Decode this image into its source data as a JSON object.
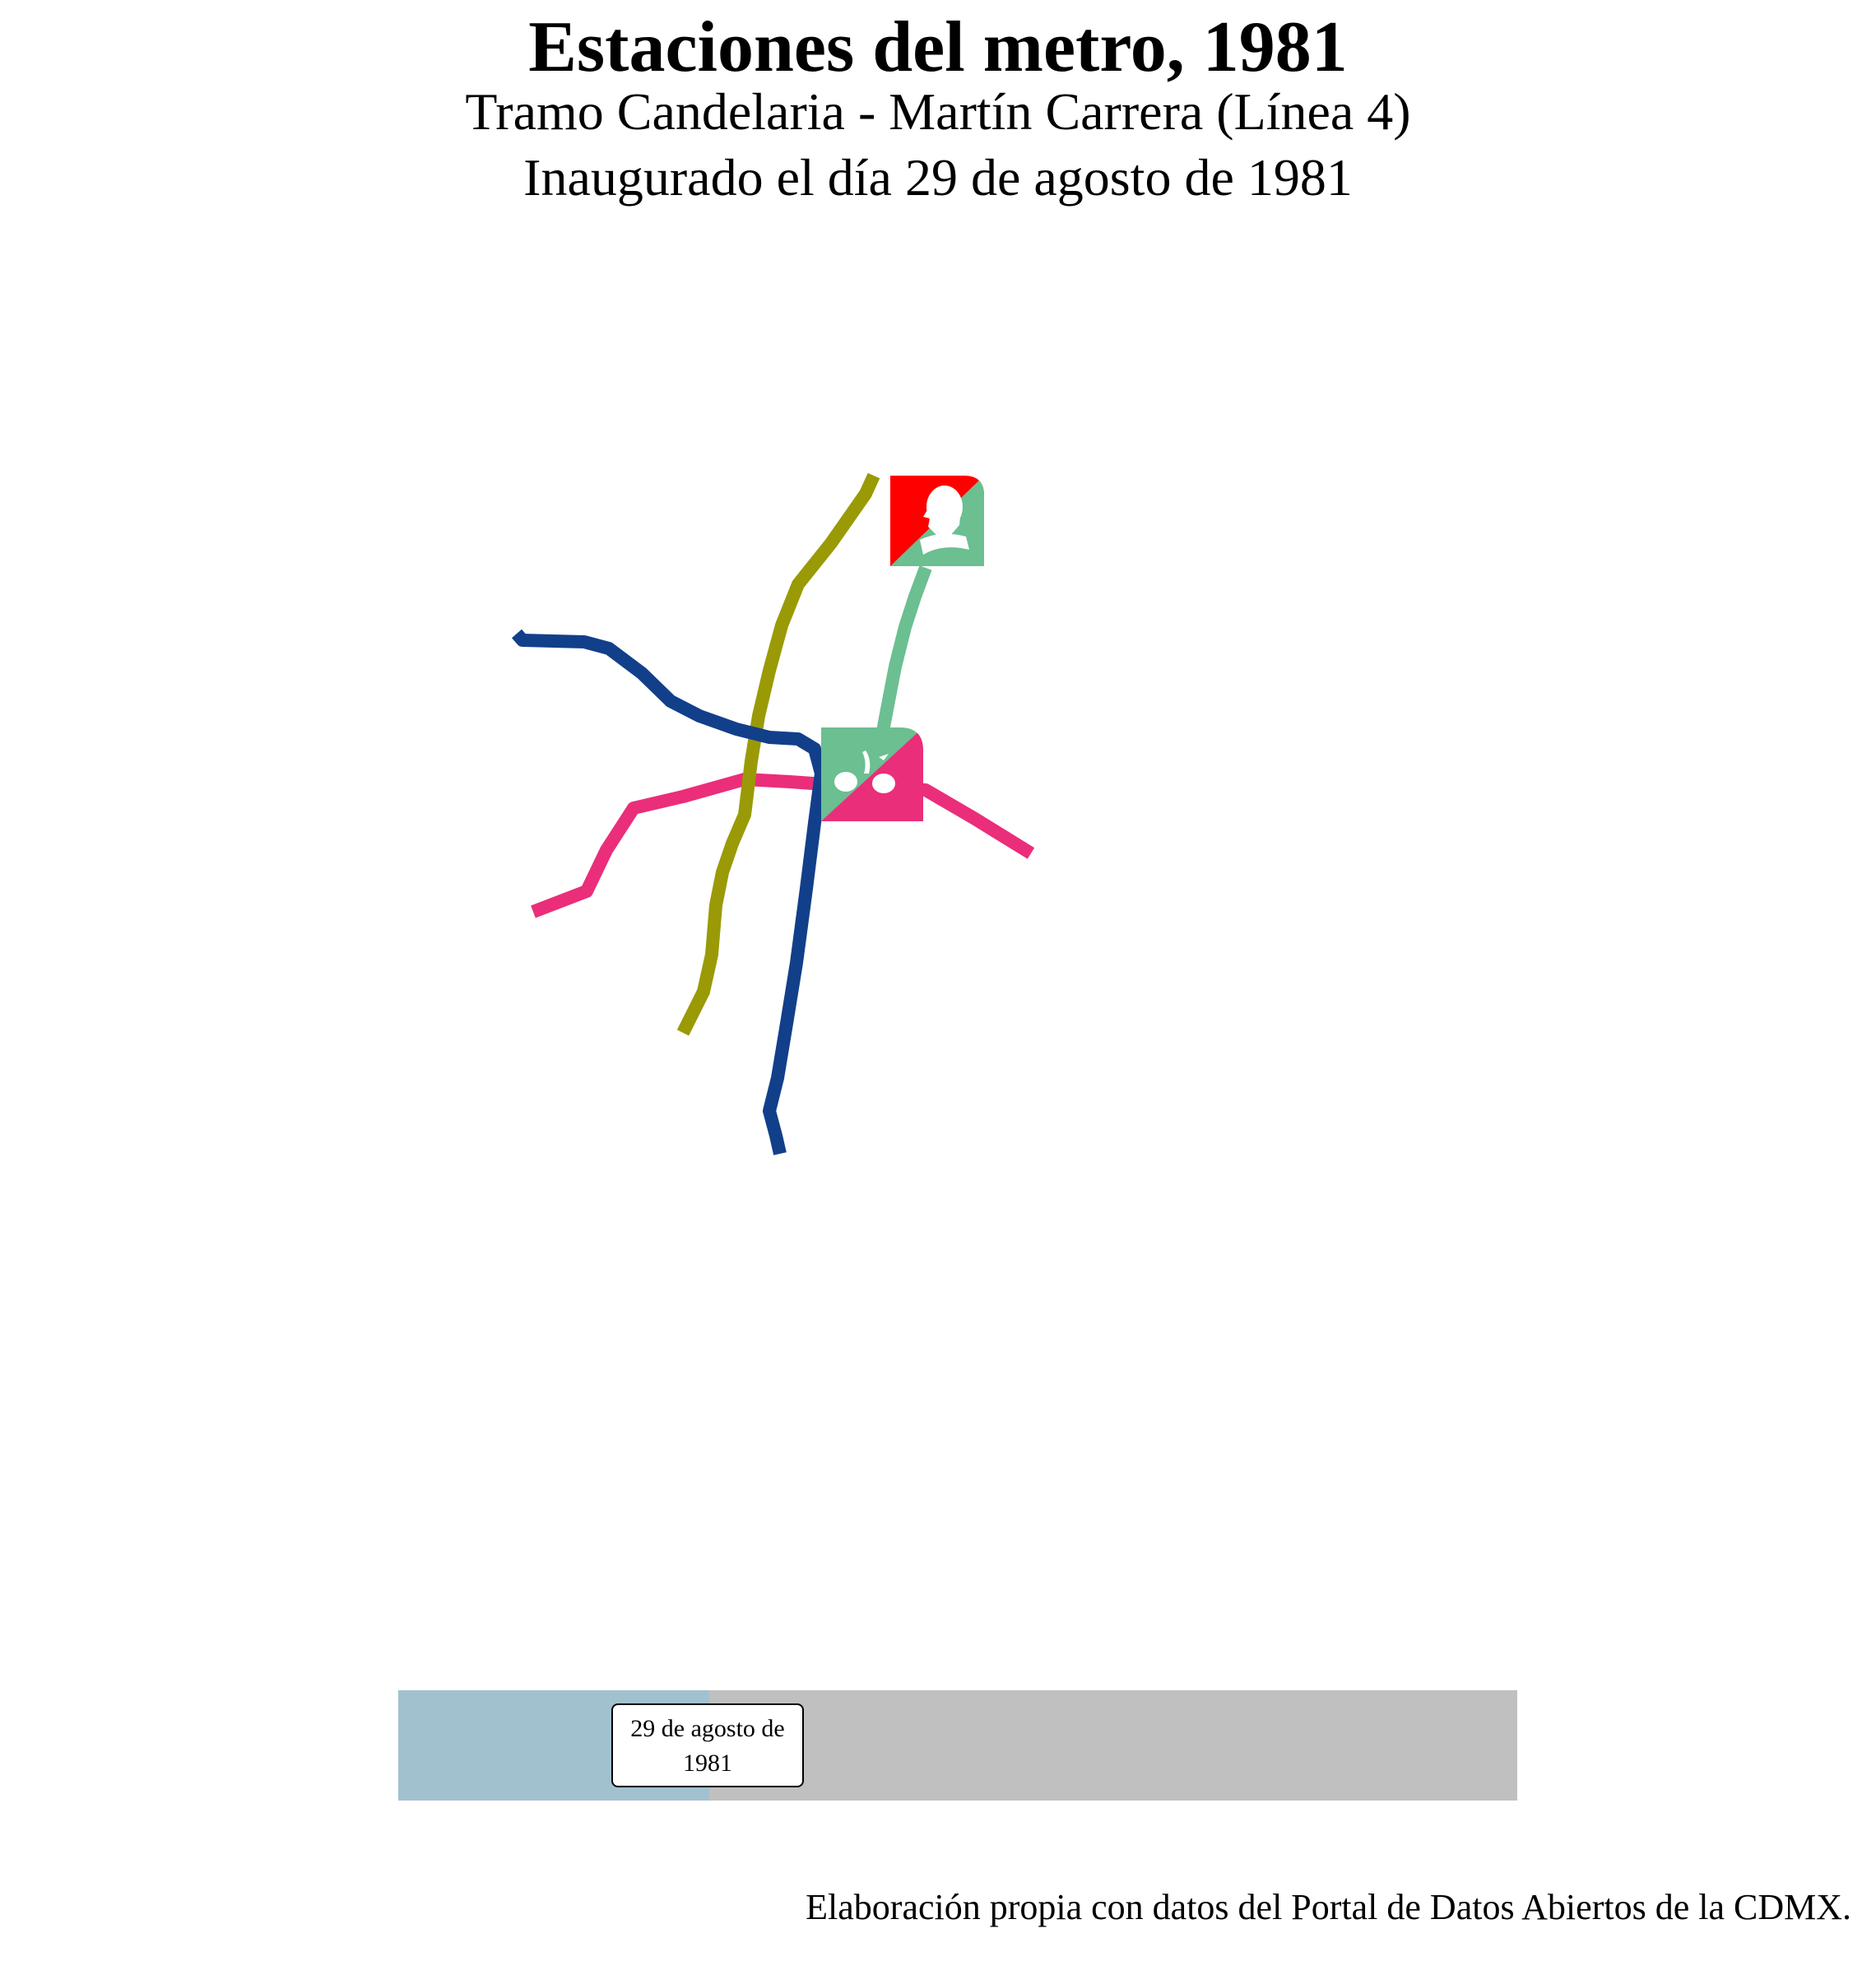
{
  "header": {
    "title": "Estaciones del metro, 1981",
    "subtitle_line1": "Tramo Candelaria - Martín Carrera (Línea 4)",
    "subtitle_line2": "Inaugurado el día 29 de agosto de 1981"
  },
  "map": {
    "lines": [
      {
        "id": "linea-1",
        "color": "#ea2e7a"
      },
      {
        "id": "linea-2",
        "color": "#123f8a"
      },
      {
        "id": "linea-3",
        "color": "#9a9a06"
      },
      {
        "id": "linea-4",
        "color": "#6bbf91"
      }
    ],
    "station_icons": [
      {
        "station": "martin-carrera",
        "icon": "martin-carrera-station-icon",
        "colors": [
          "#ff0000",
          "#6bbf91"
        ]
      },
      {
        "station": "candelaria",
        "icon": "candelaria-station-icon",
        "colors": [
          "#6bbf91",
          "#ea2e7a"
        ]
      }
    ]
  },
  "timeline": {
    "progress": 0.278,
    "date_label": "29 de agosto de 1981",
    "track_color": "#c0c0c0",
    "progress_color": "#a2c1cf"
  },
  "footer": {
    "caption": "Elaboración propia con datos del Portal de Datos Abiertos de la CDMX."
  }
}
